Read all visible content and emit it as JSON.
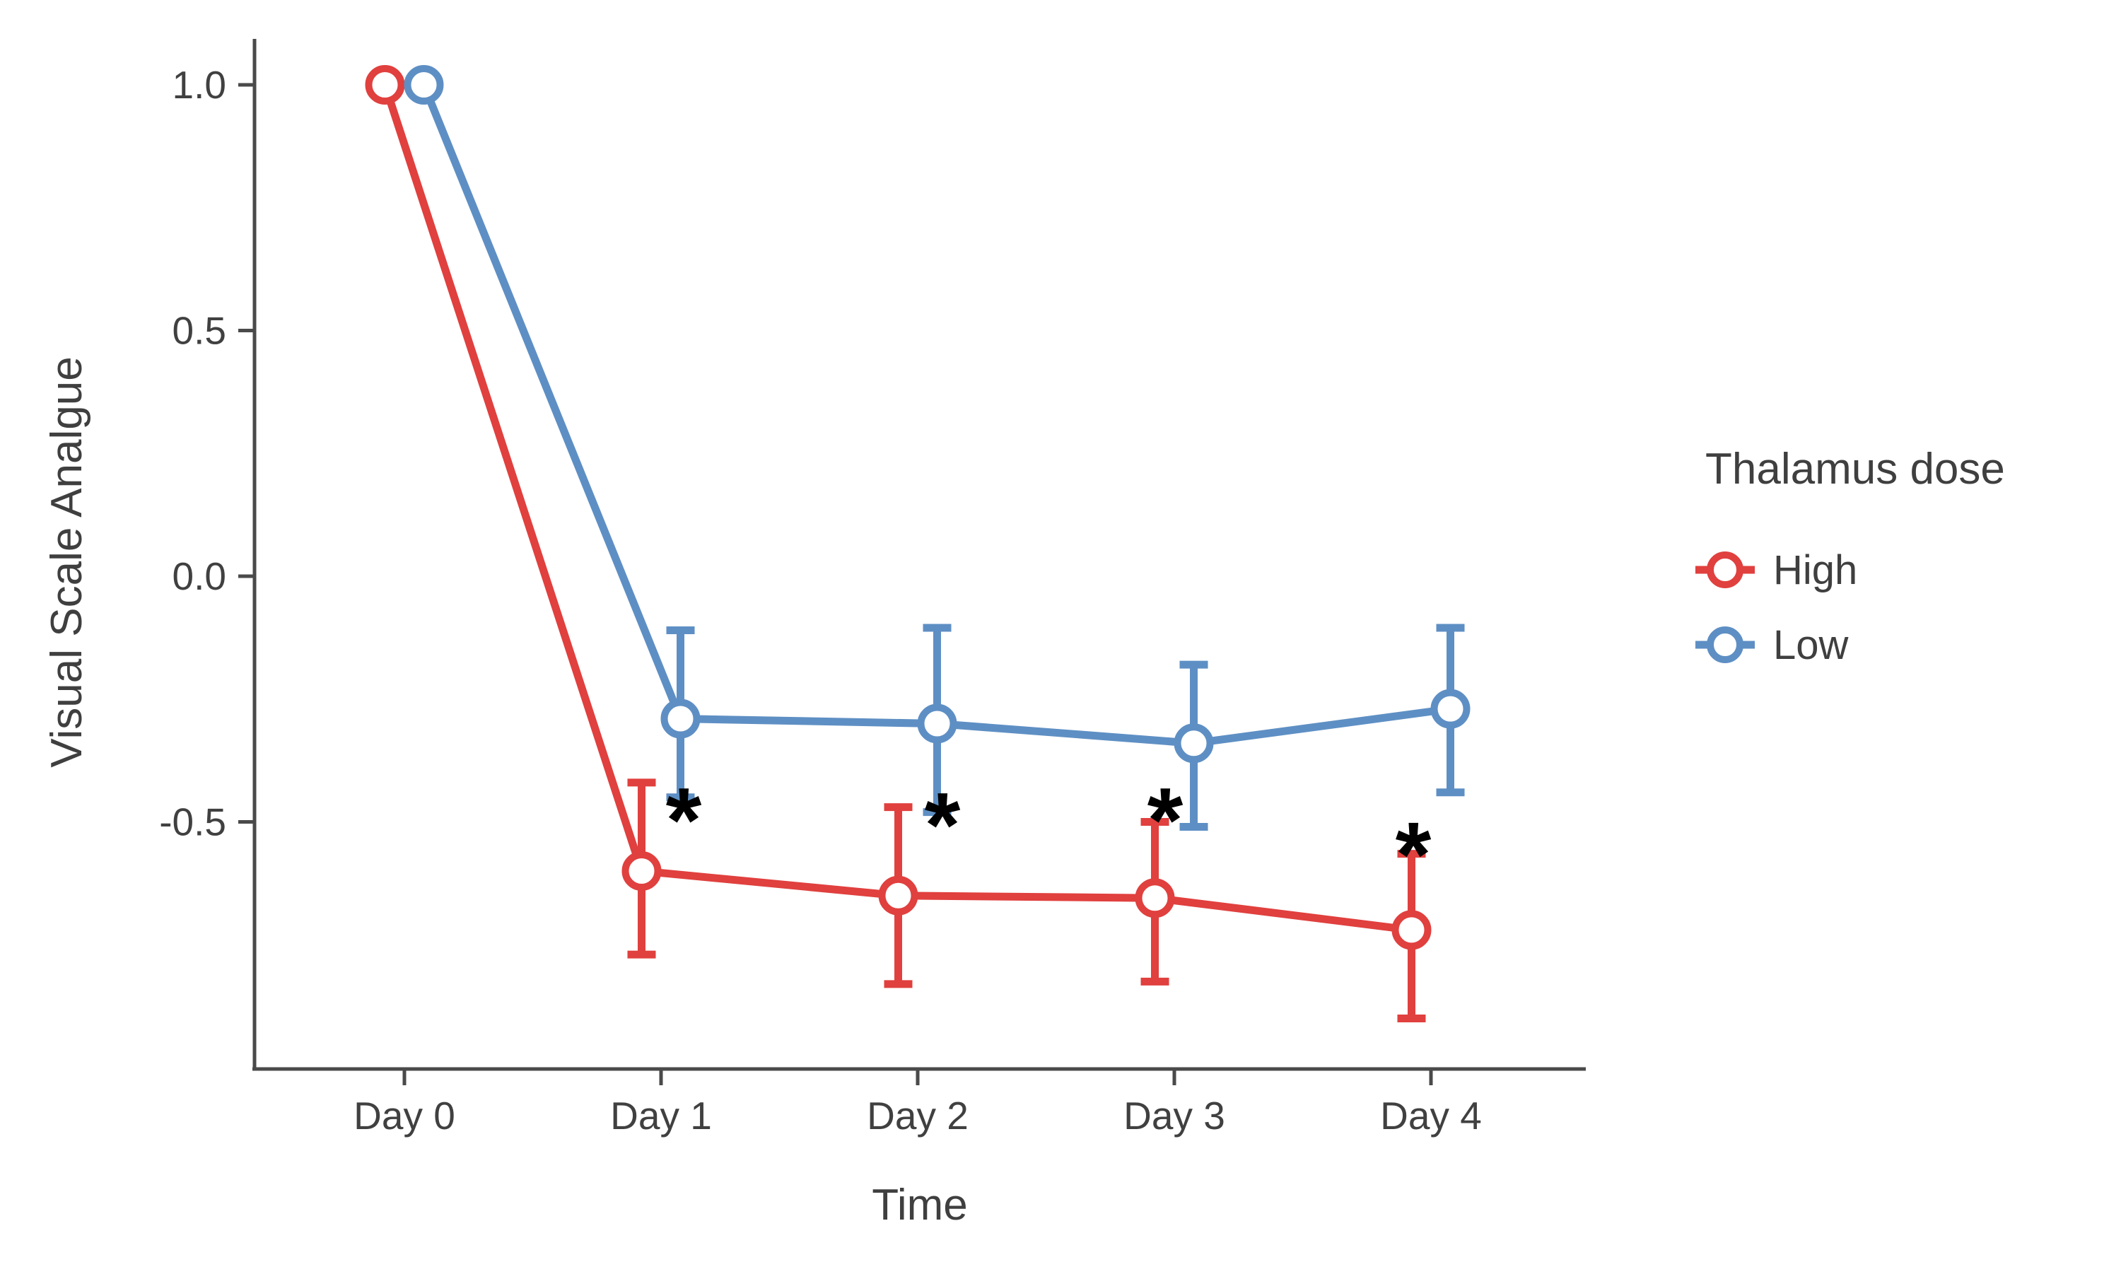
{
  "chart_data": {
    "type": "line",
    "title": "",
    "xlabel": "Time",
    "ylabel": "Visual Scale Analgue",
    "legend_title": "Thalamus dose",
    "categories": [
      "Day 0",
      "Day 1",
      "Day 2",
      "Day 3",
      "Day 4"
    ],
    "y_tick_labels": [
      "1.0",
      "0.5",
      "0.0",
      "-0.5"
    ],
    "y_tick_values": [
      1.0,
      0.5,
      0.0,
      -0.5
    ],
    "ylim": [
      -1.01,
      1.06
    ],
    "grid": false,
    "legend_position": "right",
    "series": [
      {
        "name": "High",
        "color": "#E0403E",
        "marker": "open-circle",
        "dodge": -27.5,
        "values": [
          1.0,
          -0.6,
          -0.65,
          -0.655,
          -0.72
        ],
        "err_low": [
          null,
          -0.77,
          -0.83,
          -0.825,
          -0.9
        ],
        "err_high": [
          null,
          -0.42,
          -0.47,
          -0.5,
          -0.565
        ]
      },
      {
        "name": "Low",
        "color": "#5E8FC4",
        "marker": "open-circle",
        "dodge": 27.5,
        "values": [
          1.0,
          -0.29,
          -0.3,
          -0.34,
          -0.27
        ],
        "err_low": [
          null,
          -0.45,
          -0.48,
          -0.51,
          -0.44
        ],
        "err_high": [
          null,
          -0.11,
          -0.105,
          -0.18,
          -0.105
        ]
      }
    ],
    "annotations": [
      {
        "label": "*",
        "day": 1,
        "dx": 32,
        "value": -0.47
      },
      {
        "label": "*",
        "day": 2,
        "dx": 35,
        "value": -0.48
      },
      {
        "label": "*",
        "day": 3,
        "dx": -13,
        "value": -0.47
      },
      {
        "label": "*",
        "day": 4,
        "dx": -25,
        "value": -0.54
      }
    ],
    "colors": {
      "axis": "#4a4a4a",
      "tick_text": "#404040",
      "annotation": "#000000",
      "background": "#ffffff"
    }
  }
}
